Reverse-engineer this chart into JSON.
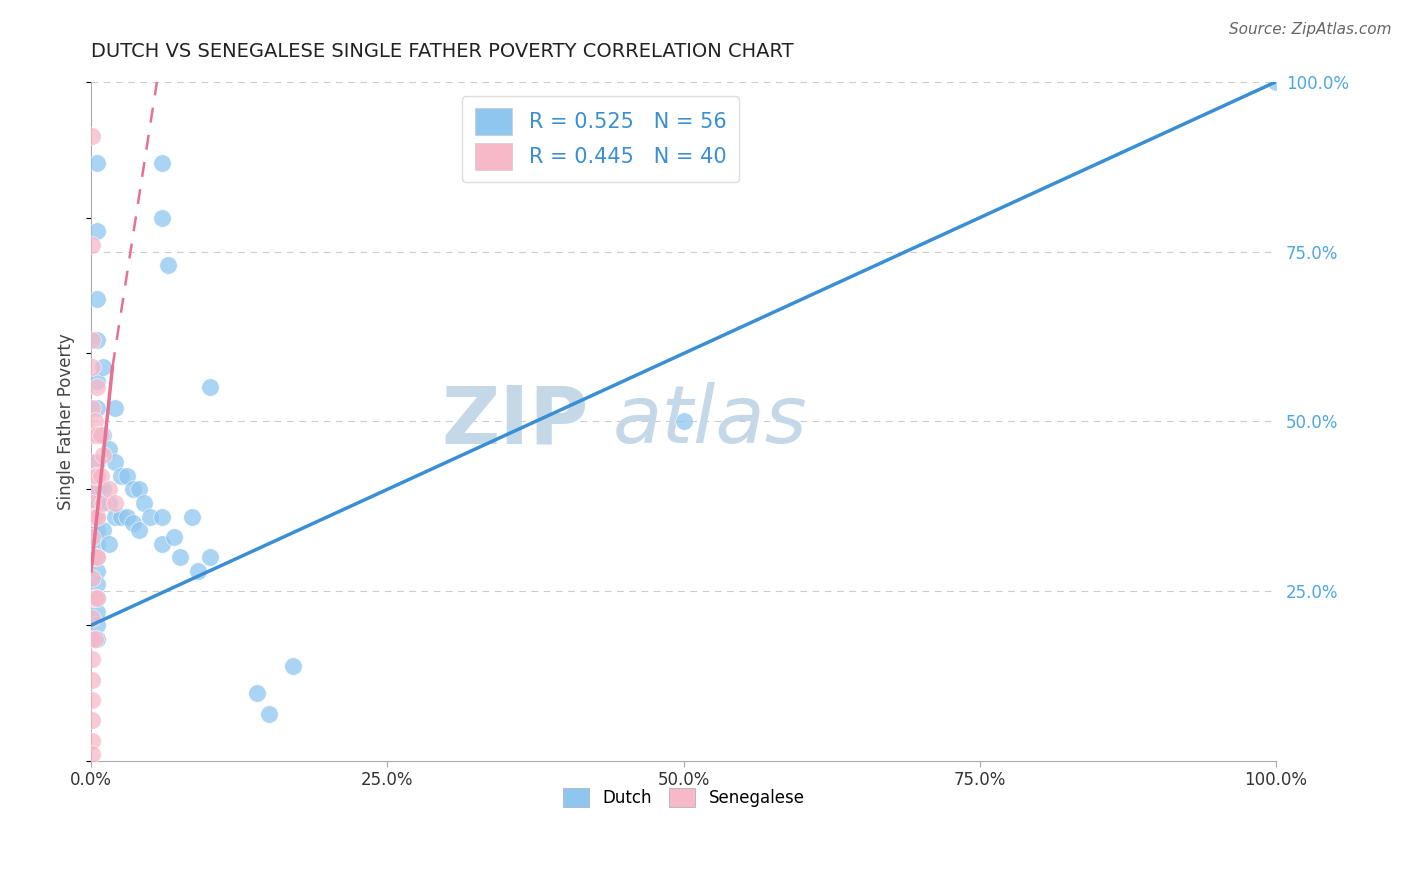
{
  "title": "DUTCH VS SENEGALESE SINGLE FATHER POVERTY CORRELATION CHART",
  "source": "Source: ZipAtlas.com",
  "ylabel": "Single Father Poverty",
  "dutch_R": 0.525,
  "dutch_N": 56,
  "senegalese_R": 0.445,
  "senegalese_N": 40,
  "dutch_color": "#8ec6f0",
  "senegalese_color": "#f7b8c8",
  "dutch_line_color": "#3a8fd4",
  "senegalese_line_color": "#e87090",
  "watermark_zip_color": "#c5d8e8",
  "watermark_atlas_color": "#c5d8e8",
  "dutch_points": [
    [
      0.005,
      0.88
    ],
    [
      0.005,
      0.78
    ],
    [
      0.005,
      0.68
    ],
    [
      0.005,
      0.62
    ],
    [
      0.005,
      0.56
    ],
    [
      0.005,
      0.52
    ],
    [
      0.005,
      0.48
    ],
    [
      0.005,
      0.44
    ],
    [
      0.005,
      0.4
    ],
    [
      0.005,
      0.38
    ],
    [
      0.005,
      0.36
    ],
    [
      0.005,
      0.34
    ],
    [
      0.005,
      0.32
    ],
    [
      0.005,
      0.3
    ],
    [
      0.005,
      0.28
    ],
    [
      0.005,
      0.26
    ],
    [
      0.005,
      0.24
    ],
    [
      0.005,
      0.22
    ],
    [
      0.005,
      0.2
    ],
    [
      0.005,
      0.18
    ],
    [
      0.01,
      0.58
    ],
    [
      0.01,
      0.48
    ],
    [
      0.01,
      0.4
    ],
    [
      0.01,
      0.34
    ],
    [
      0.015,
      0.46
    ],
    [
      0.015,
      0.38
    ],
    [
      0.015,
      0.32
    ],
    [
      0.02,
      0.52
    ],
    [
      0.02,
      0.44
    ],
    [
      0.02,
      0.36
    ],
    [
      0.025,
      0.42
    ],
    [
      0.025,
      0.36
    ],
    [
      0.03,
      0.42
    ],
    [
      0.03,
      0.36
    ],
    [
      0.035,
      0.4
    ],
    [
      0.035,
      0.35
    ],
    [
      0.04,
      0.4
    ],
    [
      0.04,
      0.34
    ],
    [
      0.045,
      0.38
    ],
    [
      0.05,
      0.36
    ],
    [
      0.06,
      0.36
    ],
    [
      0.06,
      0.32
    ],
    [
      0.07,
      0.33
    ],
    [
      0.075,
      0.3
    ],
    [
      0.085,
      0.36
    ],
    [
      0.09,
      0.28
    ],
    [
      0.1,
      0.3
    ],
    [
      0.06,
      0.88
    ],
    [
      0.06,
      0.8
    ],
    [
      0.065,
      0.73
    ],
    [
      0.1,
      0.55
    ],
    [
      0.14,
      0.1
    ],
    [
      0.15,
      0.07
    ],
    [
      0.17,
      0.14
    ],
    [
      0.5,
      0.5
    ],
    [
      1.0,
      1.0
    ]
  ],
  "senegalese_points": [
    [
      0.001,
      0.92
    ],
    [
      0.001,
      0.76
    ],
    [
      0.001,
      0.62
    ],
    [
      0.001,
      0.58
    ],
    [
      0.001,
      0.52
    ],
    [
      0.001,
      0.48
    ],
    [
      0.001,
      0.44
    ],
    [
      0.001,
      0.4
    ],
    [
      0.001,
      0.38
    ],
    [
      0.001,
      0.36
    ],
    [
      0.001,
      0.33
    ],
    [
      0.001,
      0.3
    ],
    [
      0.001,
      0.27
    ],
    [
      0.001,
      0.24
    ],
    [
      0.001,
      0.21
    ],
    [
      0.001,
      0.18
    ],
    [
      0.001,
      0.15
    ],
    [
      0.001,
      0.12
    ],
    [
      0.001,
      0.09
    ],
    [
      0.001,
      0.06
    ],
    [
      0.001,
      0.03
    ],
    [
      0.001,
      0.01
    ],
    [
      0.003,
      0.5
    ],
    [
      0.003,
      0.42
    ],
    [
      0.003,
      0.36
    ],
    [
      0.003,
      0.3
    ],
    [
      0.003,
      0.24
    ],
    [
      0.003,
      0.18
    ],
    [
      0.005,
      0.55
    ],
    [
      0.005,
      0.48
    ],
    [
      0.005,
      0.42
    ],
    [
      0.005,
      0.36
    ],
    [
      0.005,
      0.3
    ],
    [
      0.005,
      0.24
    ],
    [
      0.008,
      0.48
    ],
    [
      0.008,
      0.42
    ],
    [
      0.01,
      0.45
    ],
    [
      0.01,
      0.38
    ],
    [
      0.015,
      0.4
    ],
    [
      0.02,
      0.38
    ]
  ],
  "dutch_line": [
    [
      0.0,
      0.2
    ],
    [
      1.0,
      1.0
    ]
  ],
  "senegalese_line_solid": [
    [
      0.0,
      0.28
    ],
    [
      0.018,
      0.58
    ]
  ],
  "senegalese_line_dashed": [
    [
      0.018,
      0.58
    ],
    [
      0.06,
      1.05
    ]
  ]
}
